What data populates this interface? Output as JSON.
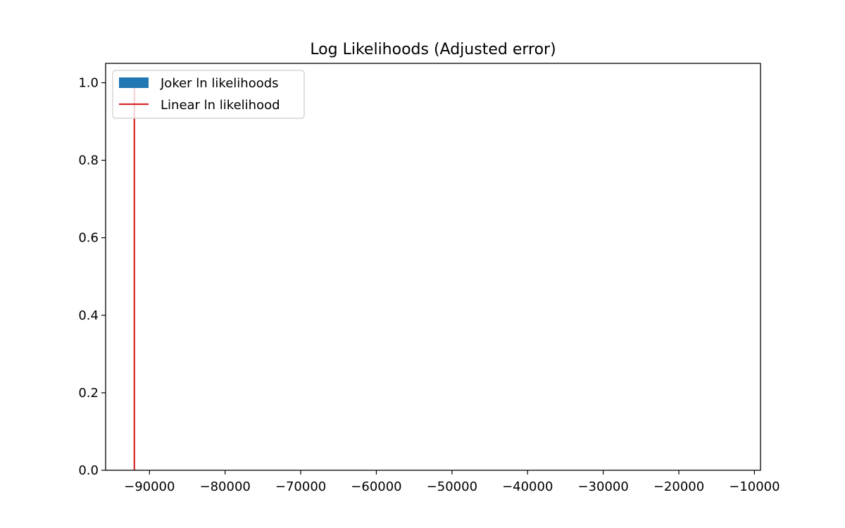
{
  "chart_data": {
    "type": "bar",
    "title": "Log Likelihoods (Adjusted error)",
    "xlabel": "",
    "ylabel": "",
    "xlim": [
      -95800,
      -9200
    ],
    "ylim": [
      0,
      1.05
    ],
    "x_ticks": [
      -90000,
      -80000,
      -70000,
      -60000,
      -50000,
      -40000,
      -30000,
      -20000,
      -10000
    ],
    "x_tick_labels": [
      "−90000",
      "−80000",
      "−70000",
      "−60000",
      "−50000",
      "−40000",
      "−30000",
      "−20000",
      "−10000"
    ],
    "y_ticks": [
      0.0,
      0.2,
      0.4,
      0.6,
      0.8,
      1.0
    ],
    "y_tick_labels": [
      "0.0",
      "0.2",
      "0.4",
      "0.6",
      "0.8",
      "1.0"
    ],
    "grid": false,
    "legend_position": "upper-left",
    "series": [
      {
        "name": "Joker ln likelihoods",
        "kind": "histogram",
        "values": [],
        "color": "#1f77b4"
      },
      {
        "name": "Linear ln likelihood",
        "kind": "vline",
        "x": -92000,
        "y_range": [
          0,
          1.0
        ],
        "color": "#d62728"
      }
    ]
  }
}
